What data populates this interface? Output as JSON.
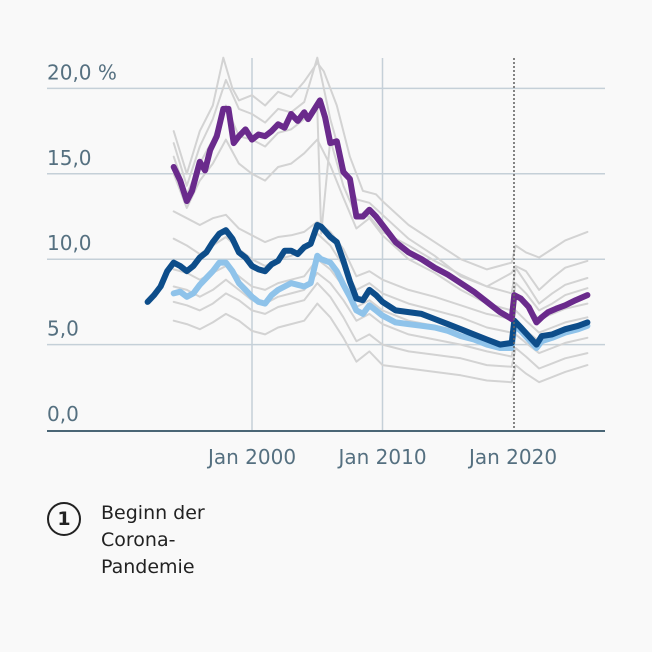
{
  "chart_data": {
    "type": "line",
    "title": "",
    "xlabel": "",
    "ylabel": "",
    "y_unit": "%",
    "ylim": [
      0,
      20
    ],
    "xlim": [
      1984,
      2028
    ],
    "y_ticks": [
      {
        "value": 0,
        "label": "0,0"
      },
      {
        "value": 5,
        "label": "5,0"
      },
      {
        "value": 10,
        "label": "10,0"
      },
      {
        "value": 15,
        "label": "15,0"
      },
      {
        "value": 20,
        "label": "20,0 %"
      }
    ],
    "x_ticks": [
      {
        "value": 2000,
        "label": "Jan 2000"
      },
      {
        "value": 2010,
        "label": "Jan 2010"
      },
      {
        "value": 2020,
        "label": "Jan 2020"
      }
    ],
    "grid": true,
    "annotation": {
      "x": 2020.0,
      "marker": "1",
      "label": "Beginn der Corona-Pandemie"
    },
    "colors": {
      "purple": "#6a2a8c",
      "dark_blue": "#0d4d8a",
      "light_blue": "#8fc3ea",
      "grey": "#d3d3d3",
      "grid": "#c5d0d8",
      "axis": "#4a6676"
    },
    "series": [
      {
        "name": "highlight-purple",
        "color": "#6a2a8c",
        "width": 6,
        "x": [
          1994,
          1994.5,
          1995,
          1995.4,
          1996,
          1996.4,
          1996.8,
          1997.3,
          1997.8,
          1998.2,
          1998.6,
          1999,
          1999.5,
          2000,
          2000.5,
          2001,
          2001.5,
          2002,
          2002.5,
          2003,
          2003.5,
          2004,
          2004.3,
          2004.8,
          2005.2,
          2005.6,
          2006,
          2006.5,
          2007,
          2007.5,
          2008,
          2008.5,
          2009,
          2009.5,
          2010,
          2011,
          2012,
          2013,
          2014,
          2015,
          2016,
          2017,
          2018,
          2019,
          2019.9,
          2020.1,
          2020.6,
          2021.2,
          2021.8,
          2022.2,
          2022.7,
          2023.3,
          2024,
          2024.8,
          2025.7
        ],
        "y": [
          15.4,
          14.6,
          13.4,
          14.0,
          15.7,
          15.2,
          16.4,
          17.2,
          18.8,
          18.8,
          16.8,
          17.2,
          17.6,
          17.0,
          17.3,
          17.2,
          17.5,
          17.9,
          17.7,
          18.5,
          18.1,
          18.6,
          18.2,
          18.8,
          19.3,
          18.3,
          16.8,
          16.9,
          15.1,
          14.7,
          12.5,
          12.5,
          12.9,
          12.5,
          12.0,
          11.0,
          10.4,
          10.0,
          9.5,
          9.1,
          8.6,
          8.1,
          7.5,
          6.9,
          6.5,
          7.9,
          7.7,
          7.2,
          6.3,
          6.6,
          6.9,
          7.1,
          7.3,
          7.6,
          7.9
        ]
      },
      {
        "name": "highlight-dark-blue",
        "color": "#0d4d8a",
        "width": 6,
        "x": [
          1992,
          1992.5,
          1993,
          1993.5,
          1994,
          1994.5,
          1995,
          1995.5,
          1996,
          1996.5,
          1997,
          1997.5,
          1998,
          1998.5,
          1999,
          1999.5,
          2000,
          2000.5,
          2001,
          2001.5,
          2002,
          2002.5,
          2003,
          2003.5,
          2004,
          2004.5,
          2005,
          2005.3,
          2006,
          2006.5,
          2007,
          2007.5,
          2008,
          2008.5,
          2009,
          2009.5,
          2010,
          2011,
          2012,
          2013,
          2014,
          2015,
          2016,
          2017,
          2018,
          2019,
          2019.9,
          2020.1,
          2020.6,
          2021.2,
          2021.8,
          2022.2,
          2023,
          2024,
          2025,
          2025.7
        ],
        "y": [
          7.5,
          7.9,
          8.4,
          9.3,
          9.8,
          9.6,
          9.3,
          9.6,
          10.1,
          10.4,
          11.0,
          11.5,
          11.7,
          11.2,
          10.4,
          10.1,
          9.6,
          9.4,
          9.3,
          9.7,
          9.9,
          10.5,
          10.5,
          10.3,
          10.7,
          10.9,
          12.0,
          11.9,
          11.3,
          11.0,
          9.9,
          8.7,
          7.7,
          7.6,
          8.2,
          7.9,
          7.5,
          7.0,
          6.9,
          6.8,
          6.5,
          6.2,
          5.9,
          5.6,
          5.3,
          5.0,
          5.1,
          6.4,
          6.0,
          5.5,
          5.0,
          5.5,
          5.6,
          5.9,
          6.1,
          6.3
        ]
      },
      {
        "name": "highlight-light-blue",
        "color": "#8fc3ea",
        "width": 6,
        "x": [
          1994,
          1994.5,
          1995,
          1995.5,
          1996,
          1996.5,
          1997,
          1997.5,
          1998,
          1998.5,
          1999,
          1999.5,
          2000,
          2000.5,
          2001,
          2001.5,
          2002,
          2002.5,
          2003,
          2003.5,
          2004,
          2004.5,
          2005,
          2005.3,
          2006,
          2006.5,
          2007,
          2007.5,
          2008,
          2008.5,
          2009,
          2009.5,
          2010,
          2011,
          2012,
          2013,
          2014,
          2015,
          2016,
          2017,
          2018,
          2019,
          2019.9,
          2020.1,
          2020.6,
          2021.2,
          2021.8,
          2022.2,
          2023,
          2024,
          2025,
          2025.7
        ],
        "y": [
          8.0,
          8.1,
          7.8,
          8.0,
          8.5,
          8.9,
          9.3,
          9.8,
          9.8,
          9.3,
          8.6,
          8.2,
          7.8,
          7.5,
          7.4,
          7.9,
          8.2,
          8.4,
          8.6,
          8.5,
          8.4,
          8.6,
          10.2,
          10.0,
          9.8,
          9.3,
          8.5,
          7.8,
          7.0,
          6.8,
          7.3,
          7.0,
          6.7,
          6.3,
          6.2,
          6.1,
          6.0,
          5.8,
          5.5,
          5.3,
          5.0,
          4.8,
          4.8,
          6.1,
          5.8,
          5.3,
          4.8,
          5.2,
          5.4,
          5.7,
          5.9,
          6.1
        ]
      },
      {
        "name": "grey-1",
        "color": "#d3d3d3",
        "width": 2,
        "x": [
          1994,
          1995,
          1996,
          1997,
          1997.8,
          1998.5,
          1999,
          2000,
          2001,
          2002,
          2003,
          2004,
          2005,
          2005.5,
          2006.5,
          2007.5,
          2008.5,
          2009.5,
          2010,
          2012,
          2014,
          2016,
          2018,
          2019.9,
          2020.2,
          2021,
          2022,
          2023,
          2024,
          2025.7
        ],
        "y": [
          17.5,
          15.0,
          17.5,
          19.0,
          21.8,
          20.0,
          19.3,
          19.6,
          19.0,
          19.8,
          19.5,
          20.4,
          21.5,
          21.0,
          19.0,
          16.0,
          14.0,
          13.8,
          13.4,
          12.0,
          11.0,
          10.0,
          9.4,
          9.8,
          10.8,
          10.4,
          10.1,
          10.6,
          11.1,
          11.6
        ]
      },
      {
        "name": "grey-2",
        "color": "#d3d3d3",
        "width": 2,
        "x": [
          1994,
          1995,
          1996,
          1997,
          1998,
          1999,
          2000,
          2001,
          2002,
          2003,
          2004,
          2005,
          2006,
          2007,
          2008,
          2009,
          2010,
          2012,
          2014,
          2016,
          2018,
          2019.9,
          2020.2,
          2021,
          2022,
          2023,
          2024,
          2025.7
        ],
        "y": [
          16.8,
          14.3,
          16.6,
          18.2,
          20.5,
          18.8,
          18.5,
          18.0,
          18.8,
          18.6,
          19.2,
          21.8,
          18.2,
          15.5,
          13.5,
          13.3,
          12.6,
          11.2,
          10.2,
          9.0,
          8.4,
          9.2,
          9.6,
          9.3,
          8.2,
          8.9,
          9.5,
          9.9
        ]
      },
      {
        "name": "grey-3",
        "color": "#d3d3d3",
        "width": 2,
        "x": [
          1994,
          1995,
          1996,
          1997,
          1998,
          1999,
          2000,
          2001,
          2002,
          2003,
          2004,
          2005,
          2005.3,
          2006,
          2007,
          2008,
          2009,
          2010,
          2012,
          2014,
          2016,
          2018,
          2019.9,
          2020.2,
          2021,
          2022,
          2023,
          2024,
          2025.7
        ],
        "y": [
          16.0,
          13.8,
          15.6,
          17.0,
          19.0,
          17.2,
          17.0,
          16.6,
          17.4,
          17.6,
          18.2,
          18.8,
          11.5,
          17.0,
          14.3,
          12.5,
          12.5,
          11.6,
          10.8,
          9.9,
          9.1,
          8.4,
          8.0,
          9.5,
          8.6,
          7.4,
          8.0,
          8.5,
          8.9
        ]
      },
      {
        "name": "grey-4",
        "color": "#d3d3d3",
        "width": 2,
        "x": [
          1994,
          1995,
          1996,
          1997,
          1998,
          1999,
          2000,
          2001,
          2002,
          2003,
          2004,
          2005,
          2006,
          2007,
          2008,
          2009,
          2010,
          2012,
          2014,
          2016,
          2018,
          2019.9,
          2020.2,
          2021,
          2022,
          2023,
          2024,
          2025.7
        ],
        "y": [
          15.0,
          13.0,
          14.6,
          15.6,
          17.0,
          15.6,
          15.0,
          14.6,
          15.4,
          15.6,
          16.2,
          17.0,
          15.5,
          13.6,
          11.8,
          12.4,
          11.4,
          10.0,
          9.2,
          8.2,
          7.4,
          7.0,
          8.6,
          8.0,
          7.0,
          7.4,
          7.9,
          8.3
        ]
      },
      {
        "name": "grey-5",
        "color": "#d3d3d3",
        "width": 2,
        "x": [
          1994,
          1995,
          1996,
          1997,
          1998,
          1999,
          2000,
          2001,
          2002,
          2003,
          2004,
          2005,
          2006,
          2007,
          2008,
          2009,
          2010,
          2012,
          2014,
          2016,
          2018,
          2019.9,
          2020.2,
          2021,
          2022,
          2023,
          2024,
          2025.7
        ],
        "y": [
          12.8,
          12.4,
          12.0,
          12.4,
          12.6,
          11.8,
          11.4,
          11.0,
          11.3,
          11.4,
          11.6,
          12.2,
          11.6,
          10.6,
          9.0,
          9.3,
          8.8,
          8.2,
          7.8,
          7.3,
          6.8,
          6.5,
          7.8,
          7.3,
          6.5,
          6.8,
          7.1,
          7.4
        ]
      },
      {
        "name": "grey-6",
        "color": "#d3d3d3",
        "width": 2,
        "x": [
          1994,
          1995,
          1996,
          1997,
          1998,
          1999,
          2000,
          2001,
          2002,
          2003,
          2004,
          2005,
          2006,
          2007,
          2008,
          2009,
          2010,
          2012,
          2014,
          2016,
          2018,
          2019.9,
          2020.2,
          2021,
          2022,
          2023,
          2024,
          2025.7
        ],
        "y": [
          11.2,
          10.8,
          10.3,
          10.8,
          11.3,
          10.6,
          10.0,
          9.6,
          10.0,
          10.2,
          10.6,
          11.5,
          10.8,
          9.6,
          8.2,
          8.6,
          8.0,
          7.4,
          7.0,
          6.6,
          6.0,
          5.7,
          7.0,
          6.4,
          5.7,
          6.0,
          6.3,
          6.6
        ]
      },
      {
        "name": "grey-7",
        "color": "#d3d3d3",
        "width": 2,
        "x": [
          1994,
          1995,
          1996,
          1997,
          1998,
          1999,
          2000,
          2001,
          2002,
          2003,
          2004,
          2005,
          2006,
          2007,
          2008,
          2009,
          2010,
          2012,
          2014,
          2016,
          2018,
          2019.9,
          2020.2,
          2021,
          2022,
          2023,
          2024,
          2025.7
        ],
        "y": [
          9.4,
          9.2,
          8.8,
          9.2,
          9.6,
          9.0,
          8.4,
          8.2,
          8.6,
          8.8,
          9.0,
          10.0,
          9.4,
          8.4,
          7.2,
          7.6,
          7.0,
          6.4,
          6.1,
          5.8,
          5.3,
          5.0,
          6.3,
          5.8,
          5.2,
          5.5,
          5.8,
          6.1
        ]
      },
      {
        "name": "grey-8",
        "color": "#d3d3d3",
        "width": 2,
        "x": [
          1994,
          1995,
          1996,
          1997,
          1998,
          1999,
          2000,
          2001,
          2002,
          2003,
          2004,
          2005,
          2006,
          2007,
          2008,
          2009,
          2010,
          2012,
          2014,
          2016,
          2018,
          2019.9,
          2020.2,
          2021,
          2022,
          2023,
          2024,
          2025.7
        ],
        "y": [
          7.5,
          7.3,
          7.0,
          7.4,
          8.0,
          7.6,
          7.0,
          6.8,
          7.2,
          7.4,
          7.6,
          8.6,
          7.8,
          6.6,
          5.2,
          5.6,
          5.0,
          4.6,
          4.4,
          4.2,
          3.8,
          3.7,
          4.8,
          4.3,
          3.6,
          3.9,
          4.2,
          4.5
        ]
      },
      {
        "name": "grey-9",
        "color": "#d3d3d3",
        "width": 2,
        "x": [
          1994,
          1995,
          1996,
          1997,
          1998,
          1999,
          2000,
          2001,
          2002,
          2003,
          2004,
          2005,
          2006,
          2007,
          2008,
          2009,
          2010,
          2012,
          2014,
          2016,
          2018,
          2019.9,
          2020.2,
          2021,
          2022,
          2023,
          2024,
          2025.7
        ],
        "y": [
          6.4,
          6.2,
          5.9,
          6.3,
          6.8,
          6.4,
          5.8,
          5.6,
          6.0,
          6.2,
          6.4,
          7.4,
          6.6,
          5.4,
          4.0,
          4.6,
          3.8,
          3.6,
          3.4,
          3.2,
          2.9,
          2.8,
          3.8,
          3.3,
          2.8,
          3.1,
          3.4,
          3.8
        ]
      },
      {
        "name": "grey-10",
        "color": "#d3d3d3",
        "width": 2,
        "x": [
          1994,
          1995,
          1996,
          1997,
          1998,
          1999,
          2000,
          2001,
          2002,
          2003,
          2004,
          2005,
          2006,
          2007,
          2008,
          2009,
          2010,
          2012,
          2014,
          2016,
          2018,
          2019.9,
          2020.2,
          2021,
          2022,
          2023,
          2024,
          2025.7
        ],
        "y": [
          8.4,
          8.2,
          7.8,
          8.2,
          8.8,
          8.2,
          7.6,
          7.4,
          7.8,
          8.0,
          8.2,
          9.2,
          8.6,
          7.6,
          6.4,
          6.8,
          6.2,
          5.6,
          5.3,
          5.0,
          4.6,
          4.3,
          5.6,
          5.1,
          4.5,
          4.8,
          5.1,
          5.4
        ]
      }
    ]
  },
  "note": {
    "badge": "1",
    "text": "Beginn der Corona-Pandemie"
  }
}
